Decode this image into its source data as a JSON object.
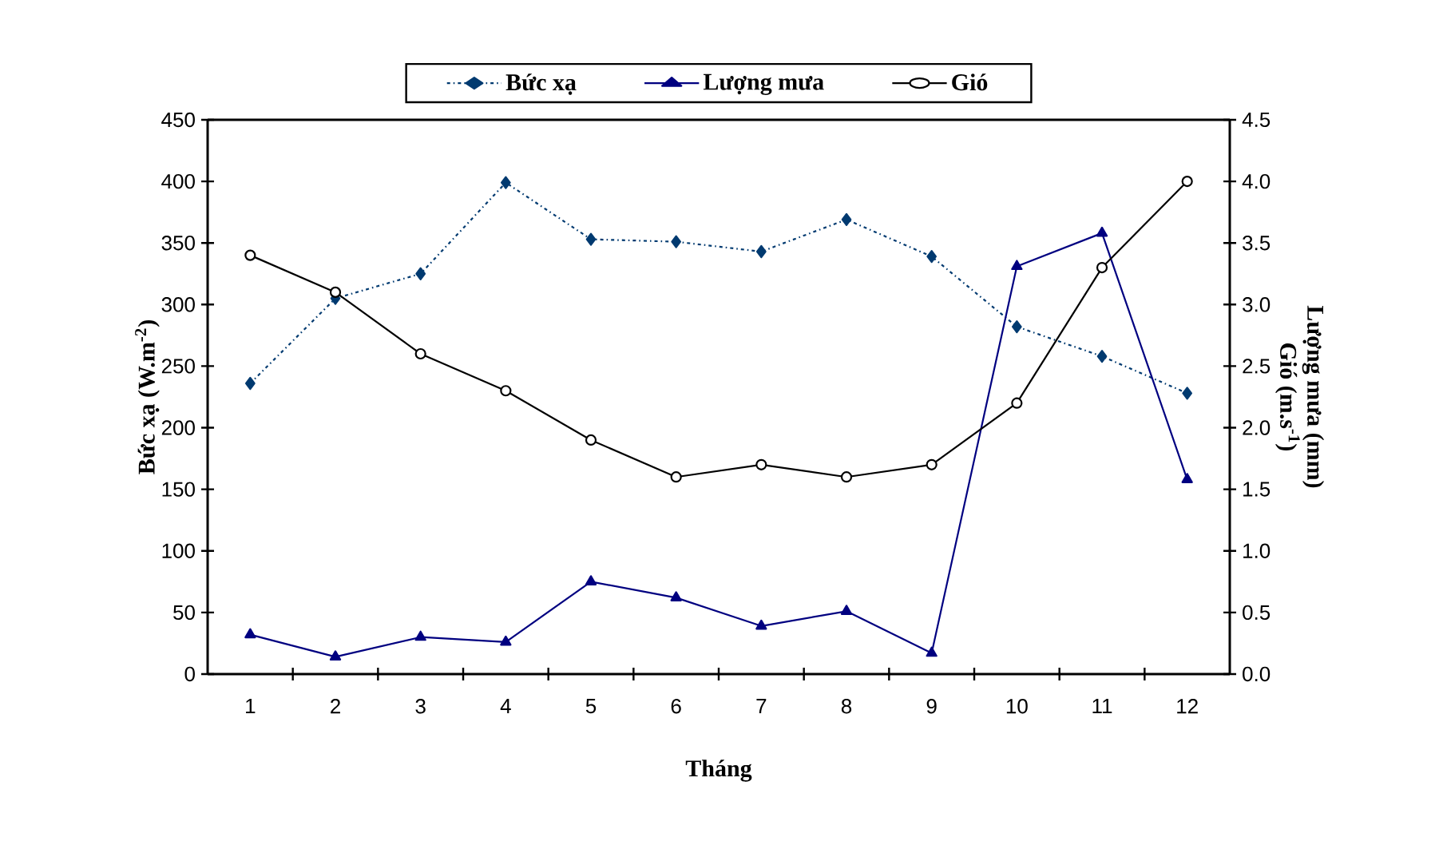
{
  "chart_data": {
    "type": "line",
    "xlabel": "Tháng",
    "ylabel": "Bức xạ (W.m$^{-2}$)",
    "y2label": "Lượng mưa (mm) Gió (m.s$^{-1}$)",
    "categories": [
      "1",
      "2",
      "3",
      "4",
      "5",
      "6",
      "7",
      "8",
      "9",
      "10",
      "11",
      "12"
    ],
    "series": [
      {
        "name": "Bức xạ",
        "color": "#003a70",
        "marker": "diamond",
        "line_style": "dotted",
        "values": [
          236,
          305,
          325,
          399,
          353,
          351,
          343,
          369,
          339,
          282,
          258,
          228
        ]
      },
      {
        "name": "Lượng mưa",
        "color": "#000080",
        "marker": "triangle",
        "line_style": "solid",
        "values": [
          32,
          14,
          30,
          26,
          75,
          62,
          39,
          51,
          17,
          331,
          358,
          158
        ]
      },
      {
        "name": "Gió",
        "color": "#000000",
        "marker": "circle",
        "line_style": "solid",
        "axis": "y2",
        "values": [
          3.4,
          3.1,
          2.6,
          2.3,
          1.9,
          1.6,
          1.7,
          1.6,
          1.7,
          2.2,
          3.3,
          4.0
        ]
      }
    ],
    "ylim": [
      0,
      450
    ],
    "yticks": [
      0,
      50,
      100,
      150,
      200,
      250,
      300,
      350,
      400,
      450
    ],
    "y2lim": [
      0,
      4.5
    ],
    "y2ticks": [
      {
        "value": 0,
        "label": "0.0"
      },
      {
        "value": 0.5,
        "label": "0.5"
      },
      {
        "value": 1,
        "label": "1.0"
      },
      {
        "value": 1.5,
        "label": "1.5"
      },
      {
        "value": 2,
        "label": "2.0"
      },
      {
        "value": 2.5,
        "label": "2.5"
      },
      {
        "value": 3,
        "label": "3.0"
      },
      {
        "value": 3.5,
        "label": "3.5"
      },
      {
        "value": 4,
        "label": "4.0"
      },
      {
        "value": 4.5,
        "label": "4.5"
      }
    ],
    "grid": false,
    "legend": "top"
  }
}
